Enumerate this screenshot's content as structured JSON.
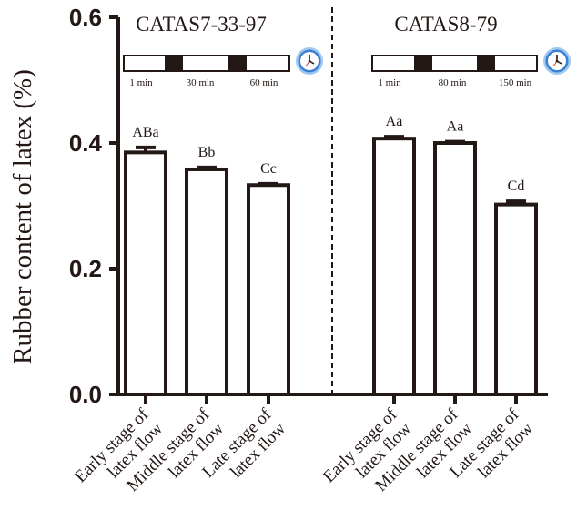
{
  "chart_data": {
    "type": "bar",
    "ylabel": "Rubber content of latex (%)",
    "ylim": [
      0.0,
      0.6
    ],
    "yticks": [
      "0.0",
      "0.2",
      "0.4",
      "0.6"
    ],
    "grid": false,
    "groups": [
      {
        "title": "CATAS7-33-97",
        "timeline_labels": [
          "1 min",
          "30 min",
          "60 min"
        ],
        "bars": [
          {
            "category": "Early stage of latex flow",
            "value": 0.385,
            "error": 0.008,
            "label": "ABa"
          },
          {
            "category": "Middle stage of latex flow",
            "value": 0.358,
            "error": 0.003,
            "label": "Bb"
          },
          {
            "category": "Late stage of latex flow",
            "value": 0.333,
            "error": 0.002,
            "label": "Cc"
          }
        ]
      },
      {
        "title": "CATAS8-79",
        "timeline_labels": [
          "1 min",
          "80 min",
          "150 min"
        ],
        "bars": [
          {
            "category": "Early stage of latex flow",
            "value": 0.407,
            "error": 0.003,
            "label": "Aa"
          },
          {
            "category": "Middle stage of latex flow",
            "value": 0.4,
            "error": 0.002,
            "label": "Aa"
          },
          {
            "category": "Late stage of latex flow",
            "value": 0.302,
            "error": 0.005,
            "label": "Cd"
          }
        ]
      }
    ]
  },
  "colors": {
    "bar_stroke": "#231815",
    "bar_fill": "#ffffff",
    "clock_face": "#3b7fd0",
    "clock_rim": "#9fc9f2"
  },
  "icons": [
    "clock-icon",
    "clock-icon"
  ]
}
